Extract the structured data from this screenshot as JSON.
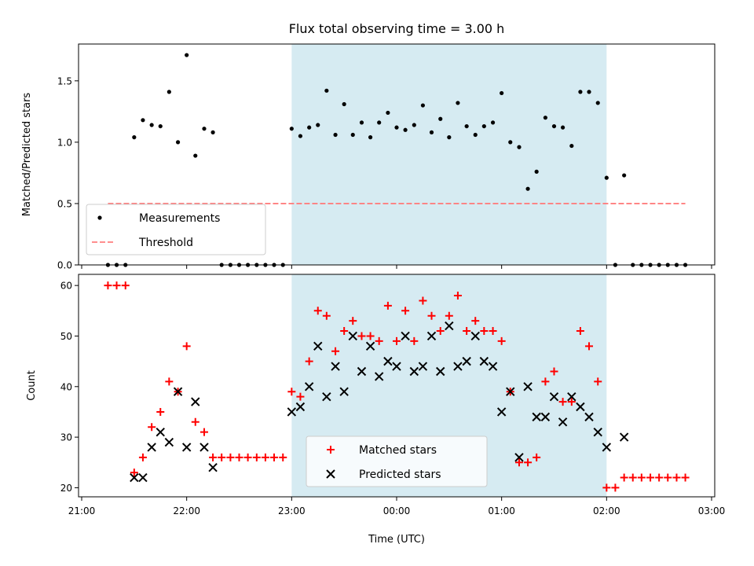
{
  "chart_data": {
    "title": "Flux total observing time = 3.00 h",
    "x_axis": {
      "label": "Time (UTC)",
      "ticks": [
        {
          "t": -3.0,
          "label": "21:00"
        },
        {
          "t": -2.0,
          "label": "22:00"
        },
        {
          "t": -1.0,
          "label": "23:00"
        },
        {
          "t": 0.0,
          "label": "00:00"
        },
        {
          "t": 1.0,
          "label": "01:00"
        },
        {
          "t": 2.0,
          "label": "02:00"
        },
        {
          "t": 3.0,
          "label": "03:00"
        }
      ],
      "range_hours": [
        -3.03,
        3.03
      ]
    },
    "shaded_region": {
      "from": "23:00",
      "to": "02:00",
      "color": "#add8e6"
    },
    "panels": [
      {
        "type": "scatter",
        "ylabel": "Matched/Predicted stars",
        "ylim": [
          0,
          1.8
        ],
        "yticks": [
          {
            "v": 0.0,
            "label": "0.0"
          },
          {
            "v": 0.5,
            "label": "0.5"
          },
          {
            "v": 1.0,
            "label": "1.0"
          },
          {
            "v": 1.5,
            "label": "1.5"
          }
        ],
        "legend_position": "lower-left",
        "series": [
          {
            "name": "Measurements",
            "marker": "dot",
            "color": "#000000",
            "points": [
              [
                -2.75,
                0.0
              ],
              [
                -2.667,
                0.0
              ],
              [
                -2.583,
                0.0
              ],
              [
                -2.5,
                1.04
              ],
              [
                -2.417,
                1.18
              ],
              [
                -2.333,
                1.14
              ],
              [
                -2.25,
                1.13
              ],
              [
                -2.167,
                1.41
              ],
              [
                -2.083,
                1.0
              ],
              [
                -2.0,
                1.71
              ],
              [
                -1.917,
                0.89
              ],
              [
                -1.833,
                1.11
              ],
              [
                -1.75,
                1.08
              ],
              [
                -1.667,
                0.0
              ],
              [
                -1.583,
                0.0
              ],
              [
                -1.5,
                0.0
              ],
              [
                -1.417,
                0.0
              ],
              [
                -1.333,
                0.0
              ],
              [
                -1.25,
                0.0
              ],
              [
                -1.167,
                0.0
              ],
              [
                -1.083,
                0.0
              ],
              [
                -1.0,
                1.11
              ],
              [
                -0.917,
                1.05
              ],
              [
                -0.833,
                1.12
              ],
              [
                -0.75,
                1.14
              ],
              [
                -0.667,
                1.42
              ],
              [
                -0.583,
                1.06
              ],
              [
                -0.5,
                1.31
              ],
              [
                -0.417,
                1.06
              ],
              [
                -0.333,
                1.16
              ],
              [
                -0.25,
                1.04
              ],
              [
                -0.167,
                1.16
              ],
              [
                -0.083,
                1.24
              ],
              [
                0.0,
                1.12
              ],
              [
                0.083,
                1.1
              ],
              [
                0.167,
                1.14
              ],
              [
                0.25,
                1.3
              ],
              [
                0.333,
                1.08
              ],
              [
                0.417,
                1.19
              ],
              [
                0.5,
                1.04
              ],
              [
                0.583,
                1.32
              ],
              [
                0.667,
                1.13
              ],
              [
                0.75,
                1.06
              ],
              [
                0.833,
                1.13
              ],
              [
                0.917,
                1.16
              ],
              [
                1.0,
                1.4
              ],
              [
                1.083,
                1.0
              ],
              [
                1.167,
                0.96
              ],
              [
                1.25,
                0.62
              ],
              [
                1.333,
                0.76
              ],
              [
                1.417,
                1.2
              ],
              [
                1.5,
                1.13
              ],
              [
                1.583,
                1.12
              ],
              [
                1.667,
                0.97
              ],
              [
                1.75,
                1.41
              ],
              [
                1.833,
                1.41
              ],
              [
                1.917,
                1.32
              ],
              [
                2.0,
                0.71
              ],
              [
                2.083,
                0.0
              ],
              [
                2.167,
                0.73
              ],
              [
                2.25,
                0.0
              ],
              [
                2.333,
                0.0
              ],
              [
                2.417,
                0.0
              ],
              [
                2.5,
                0.0
              ],
              [
                2.583,
                0.0
              ],
              [
                2.667,
                0.0
              ],
              [
                2.75,
                0.0
              ]
            ]
          },
          {
            "name": "Threshold",
            "marker": "dashed-line",
            "color": "#ff7f7f",
            "x_range": [
              -2.75,
              2.75
            ],
            "y": 0.5
          }
        ]
      },
      {
        "type": "scatter",
        "ylabel": "Count",
        "ylim": [
          18.2,
          62.2
        ],
        "yticks": [
          {
            "v": 20,
            "label": "20"
          },
          {
            "v": 30,
            "label": "30"
          },
          {
            "v": 40,
            "label": "40"
          },
          {
            "v": 50,
            "label": "50"
          },
          {
            "v": 60,
            "label": "60"
          }
        ],
        "legend_position": "lower-center",
        "series": [
          {
            "name": "Matched stars",
            "marker": "plus",
            "color": "#ff0000",
            "points": [
              [
                -2.75,
                60
              ],
              [
                -2.667,
                60
              ],
              [
                -2.583,
                60
              ],
              [
                -2.5,
                23
              ],
              [
                -2.417,
                26
              ],
              [
                -2.333,
                32
              ],
              [
                -2.25,
                35
              ],
              [
                -2.167,
                41
              ],
              [
                -2.083,
                39
              ],
              [
                -2.0,
                48
              ],
              [
                -1.917,
                33
              ],
              [
                -1.833,
                31
              ],
              [
                -1.75,
                26
              ],
              [
                -1.667,
                26
              ],
              [
                -1.583,
                26
              ],
              [
                -1.5,
                26
              ],
              [
                -1.417,
                26
              ],
              [
                -1.333,
                26
              ],
              [
                -1.25,
                26
              ],
              [
                -1.167,
                26
              ],
              [
                -1.083,
                26
              ],
              [
                -1.0,
                39
              ],
              [
                -0.917,
                38
              ],
              [
                -0.833,
                45
              ],
              [
                -0.75,
                55
              ],
              [
                -0.667,
                54
              ],
              [
                -0.583,
                47
              ],
              [
                -0.5,
                51
              ],
              [
                -0.417,
                53
              ],
              [
                -0.333,
                50
              ],
              [
                -0.25,
                50
              ],
              [
                -0.167,
                49
              ],
              [
                -0.083,
                56
              ],
              [
                0.0,
                49
              ],
              [
                0.083,
                55
              ],
              [
                0.167,
                49
              ],
              [
                0.25,
                57
              ],
              [
                0.333,
                54
              ],
              [
                0.417,
                51
              ],
              [
                0.5,
                54
              ],
              [
                0.583,
                58
              ],
              [
                0.667,
                51
              ],
              [
                0.75,
                53
              ],
              [
                0.833,
                51
              ],
              [
                0.917,
                51
              ],
              [
                1.0,
                49
              ],
              [
                1.083,
                39
              ],
              [
                1.167,
                25
              ],
              [
                1.25,
                25
              ],
              [
                1.333,
                26
              ],
              [
                1.417,
                41
              ],
              [
                1.5,
                43
              ],
              [
                1.583,
                37
              ],
              [
                1.667,
                37
              ],
              [
                1.75,
                51
              ],
              [
                1.833,
                48
              ],
              [
                1.917,
                41
              ],
              [
                2.0,
                20
              ],
              [
                2.083,
                20
              ],
              [
                2.167,
                22
              ],
              [
                2.25,
                22
              ],
              [
                2.333,
                22
              ],
              [
                2.417,
                22
              ],
              [
                2.5,
                22
              ],
              [
                2.583,
                22
              ],
              [
                2.667,
                22
              ],
              [
                2.75,
                22
              ]
            ]
          },
          {
            "name": "Predicted stars",
            "marker": "x",
            "color": "#000000",
            "points": [
              [
                -2.5,
                22
              ],
              [
                -2.417,
                22
              ],
              [
                -2.333,
                28
              ],
              [
                -2.25,
                31
              ],
              [
                -2.167,
                29
              ],
              [
                -2.083,
                39
              ],
              [
                -2.0,
                28
              ],
              [
                -1.917,
                37
              ],
              [
                -1.833,
                28
              ],
              [
                -1.75,
                24
              ],
              [
                -1.0,
                35
              ],
              [
                -0.917,
                36
              ],
              [
                -0.833,
                40
              ],
              [
                -0.75,
                48
              ],
              [
                -0.667,
                38
              ],
              [
                -0.583,
                44
              ],
              [
                -0.5,
                39
              ],
              [
                -0.417,
                50
              ],
              [
                -0.333,
                43
              ],
              [
                -0.25,
                48
              ],
              [
                -0.167,
                42
              ],
              [
                -0.083,
                45
              ],
              [
                0.0,
                44
              ],
              [
                0.083,
                50
              ],
              [
                0.167,
                43
              ],
              [
                0.25,
                44
              ],
              [
                0.333,
                50
              ],
              [
                0.417,
                43
              ],
              [
                0.5,
                52
              ],
              [
                0.583,
                44
              ],
              [
                0.667,
                45
              ],
              [
                0.75,
                50
              ],
              [
                0.833,
                45
              ],
              [
                0.917,
                44
              ],
              [
                1.0,
                35
              ],
              [
                1.083,
                39
              ],
              [
                1.167,
                26
              ],
              [
                1.25,
                40
              ],
              [
                1.333,
                34
              ],
              [
                1.417,
                34
              ],
              [
                1.5,
                38
              ],
              [
                1.583,
                33
              ],
              [
                1.667,
                38
              ],
              [
                1.75,
                36
              ],
              [
                1.833,
                34
              ],
              [
                1.917,
                31
              ],
              [
                2.0,
                28
              ],
              [
                2.167,
                30
              ]
            ]
          }
        ]
      }
    ]
  }
}
